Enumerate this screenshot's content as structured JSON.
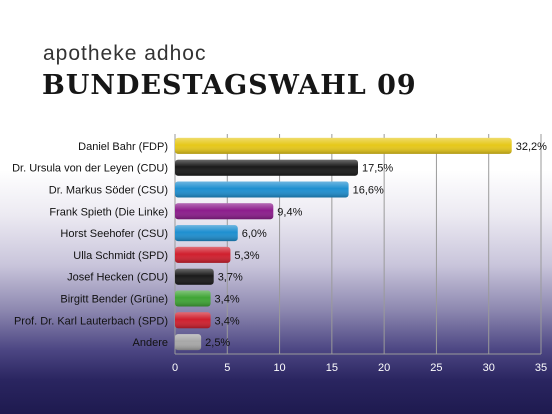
{
  "header": {
    "brand": "apotheke adhoc",
    "headline": "BUNDESTAGSWAHL 09"
  },
  "chart_data": {
    "type": "bar",
    "orientation": "horizontal",
    "title": "",
    "xlabel": "",
    "ylabel": "",
    "xlim": [
      0,
      35
    ],
    "x_ticks": [
      0,
      5,
      10,
      15,
      20,
      25,
      30,
      35
    ],
    "grid": true,
    "legend": "none",
    "categories": [
      "Daniel Bahr (FDP)",
      "Dr. Ursula von der Leyen (CDU)",
      "Dr. Markus Söder (CSU)",
      "Frank Spieth (Die Linke)",
      "Horst Seehofer (CSU)",
      "Ulla Schmidt (SPD)",
      "Josef Hecken (CDU)",
      "Birgitt Bender (Grüne)",
      "Prof. Dr. Karl Lauterbach (SPD)",
      "Andere"
    ],
    "values": [
      32.2,
      17.5,
      16.6,
      9.4,
      6.0,
      5.3,
      3.7,
      3.4,
      3.4,
      2.5
    ],
    "value_labels": [
      "32,2%",
      "17,5%",
      "16,6%",
      "9,4%",
      "6,0%",
      "5,3%",
      "3,7%",
      "3,4%",
      "3,4%",
      "2,5%"
    ],
    "colors": [
      "#e6c81a",
      "#1a1a1a",
      "#1e8fd0",
      "#8c1c8c",
      "#1e8fd0",
      "#d01f2e",
      "#1a1a1a",
      "#3fa535",
      "#d01f2e",
      "#a8a8a8"
    ]
  }
}
